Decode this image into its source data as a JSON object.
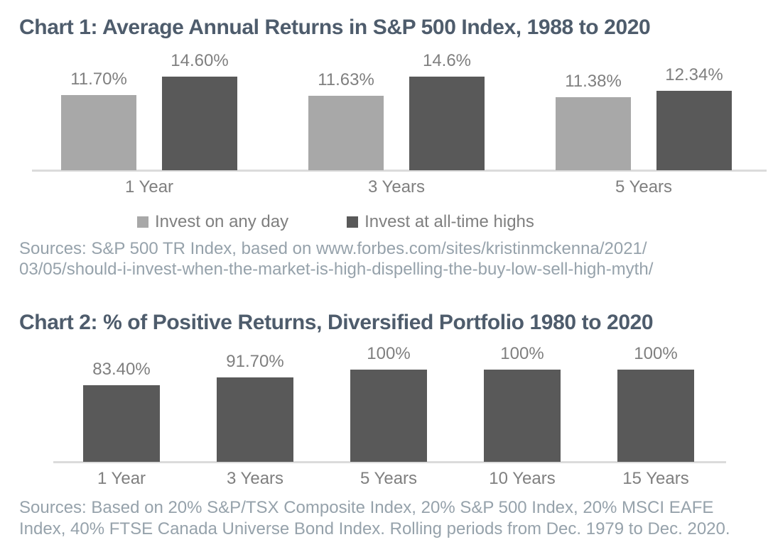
{
  "chart1": {
    "title": "Chart 1: Average Annual Returns in S&P 500 Index, 1988 to 2020",
    "sources_lines": [
      "Sources: S&P 500 TR Index, based on www.forbes.com/sites/kristinmckenna/2021/",
      "03/05/should-i-invest-when-the-market-is-high-dispelling-the-buy-low-sell-high-myth/"
    ]
  },
  "chart2": {
    "title": "Chart 2: % of Positive Returns, Diversified Portfolio 1980 to 2020",
    "sources_lines": [
      "Sources: Based on 20% S&P/TSX Composite Index, 20% S&P 500 Index, 20% MSCI EAFE",
      "Index, 40% FTSE Canada Universe Bond Index. Rolling periods from Dec. 1979 to Dec. 2020."
    ]
  },
  "colors": {
    "title_text": "#4E5C6C",
    "label_text": "#7F7F7F",
    "sources_text": "#96A2AB",
    "axis_line": "#DBDBDB",
    "bar_light": "#A8A8A8",
    "bar_dark": "#595959"
  },
  "chart_data": [
    {
      "type": "bar",
      "title": "Chart 1: Average Annual Returns in S&P 500 Index, 1988 to 2020",
      "categories": [
        "1 Year",
        "3 Years",
        "5 Years"
      ],
      "series": [
        {
          "name": "Invest on any day",
          "color": "#A8A8A8",
          "values": [
            11.7,
            11.63,
            11.38
          ],
          "labels": [
            "11.70%",
            "11.63%",
            "11.38%"
          ]
        },
        {
          "name": "Invest at all-time highs",
          "color": "#595959",
          "values": [
            14.6,
            14.6,
            12.34
          ],
          "labels": [
            "14.60%",
            "14.6%",
            "12.34%"
          ]
        }
      ],
      "ylabel": "",
      "xlabel": "",
      "ylim": [
        0,
        16
      ],
      "grid": false,
      "value_labels": true,
      "legend_position": "bottom"
    },
    {
      "type": "bar",
      "title": "Chart 2: % of Positive Returns, Diversified Portfolio 1980 to 2020",
      "categories": [
        "1 Year",
        "3 Years",
        "5 Years",
        "10 Years",
        "15 Years"
      ],
      "series": [
        {
          "name": "% of positive returns",
          "color": "#595959",
          "values": [
            83.4,
            91.7,
            100,
            100,
            100
          ],
          "labels": [
            "83.40%",
            "91.70%",
            "100%",
            "100%",
            "100%"
          ]
        }
      ],
      "ylabel": "",
      "xlabel": "",
      "ylim": [
        0,
        125
      ],
      "grid": false,
      "value_labels": true,
      "legend_position": "none"
    }
  ]
}
